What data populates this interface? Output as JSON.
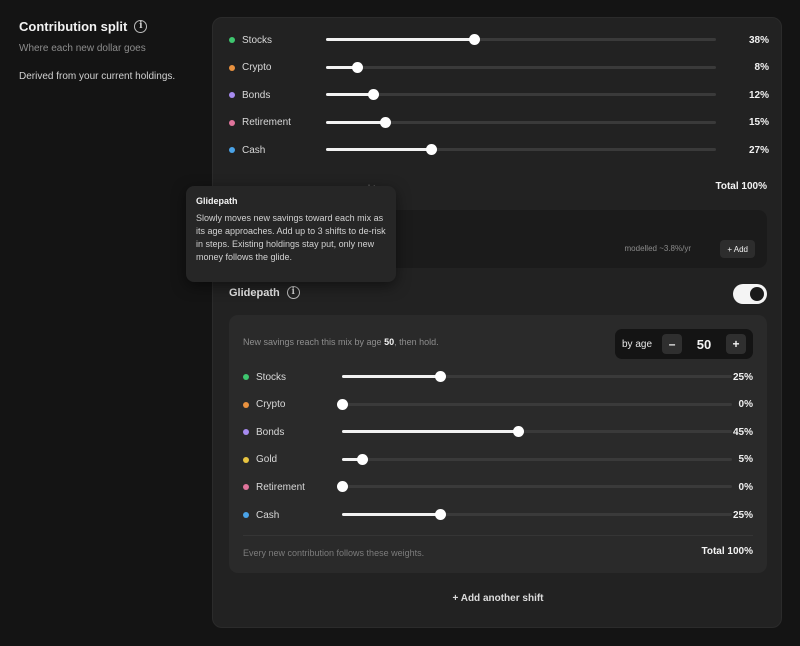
{
  "sidebar": {
    "title": "Contribution split",
    "subtitle": "Where each new dollar goes",
    "derived": "Derived from your current holdings."
  },
  "current_mix": {
    "rows": [
      {
        "label": "Stocks",
        "value": 38,
        "display": "38%",
        "color": "#3ec66f"
      },
      {
        "label": "Crypto",
        "value": 8,
        "display": "8%",
        "color": "#e8913f"
      },
      {
        "label": "Bonds",
        "value": 12,
        "display": "12%",
        "color": "#a78bf0"
      },
      {
        "label": "Retirement",
        "value": 15,
        "display": "15%",
        "color": "#e0749b"
      },
      {
        "label": "Cash",
        "value": 27,
        "display": "27%",
        "color": "#4aa3e8"
      }
    ],
    "foot_note_visible": "ghts.",
    "total": "Total 100%"
  },
  "projection": {
    "modelled": "modelled ~3.8%/yr",
    "add_label": "+ Add"
  },
  "glidepath": {
    "title": "Glidepath",
    "enabled": true,
    "reach_prefix": "New savings reach this mix by age ",
    "reach_age": "50",
    "reach_suffix": ", then hold.",
    "stepper": {
      "label": "by age",
      "minus": "–",
      "value": "50",
      "plus": "+"
    },
    "rows": [
      {
        "label": "Stocks",
        "value": 25,
        "display": "25%",
        "color": "#3ec66f"
      },
      {
        "label": "Crypto",
        "value": 0,
        "display": "0%",
        "color": "#e8913f"
      },
      {
        "label": "Bonds",
        "value": 45,
        "display": "45%",
        "color": "#a78bf0"
      },
      {
        "label": "Gold",
        "value": 5,
        "display": "5%",
        "color": "#e8c440"
      },
      {
        "label": "Retirement",
        "value": 0,
        "display": "0%",
        "color": "#e0749b"
      },
      {
        "label": "Cash",
        "value": 25,
        "display": "25%",
        "color": "#4aa3e8"
      }
    ],
    "foot_note": "Every new contribution follows these weights.",
    "total": "Total 100%",
    "add_shift": "+ Add another shift"
  },
  "tooltip": {
    "title": "Glidepath",
    "body": "Slowly moves new savings toward each mix as its age approaches. Add up to 3 shifts to de-risk in steps. Existing holdings stay put, only new money follows the glide."
  }
}
